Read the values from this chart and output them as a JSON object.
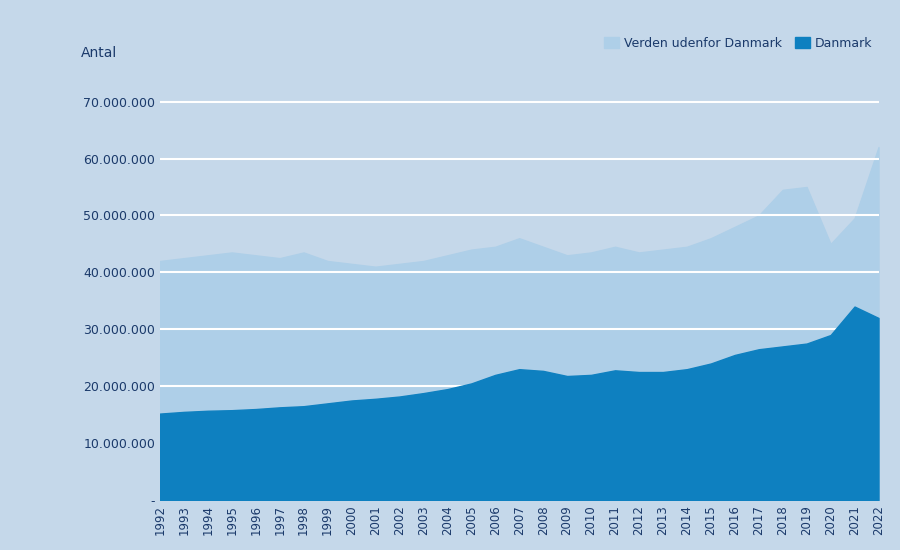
{
  "years": [
    1992,
    1993,
    1994,
    1995,
    1996,
    1997,
    1998,
    1999,
    2000,
    2001,
    2002,
    2003,
    2004,
    2005,
    2006,
    2007,
    2008,
    2009,
    2010,
    2011,
    2012,
    2013,
    2014,
    2015,
    2016,
    2017,
    2018,
    2019,
    2020,
    2021,
    2022
  ],
  "denmark": [
    15200000,
    15500000,
    15700000,
    15800000,
    16000000,
    16300000,
    16500000,
    17000000,
    17500000,
    17800000,
    18200000,
    18800000,
    19500000,
    20500000,
    22000000,
    23000000,
    22700000,
    21800000,
    22000000,
    22800000,
    22500000,
    22500000,
    23000000,
    24000000,
    25500000,
    26500000,
    27000000,
    27500000,
    29000000,
    34000000,
    32000000
  ],
  "total": [
    42000000,
    42500000,
    43000000,
    43500000,
    43000000,
    42500000,
    43500000,
    42000000,
    41500000,
    41000000,
    41500000,
    42000000,
    43000000,
    44000000,
    44500000,
    46000000,
    44500000,
    43000000,
    43500000,
    44500000,
    43500000,
    44000000,
    44500000,
    46000000,
    48000000,
    50000000,
    54500000,
    55000000,
    45000000,
    49500000,
    62000000
  ],
  "color_denmark": "#0E80C0",
  "color_verden": "#AECFE8",
  "background_color": "#C5D8EA",
  "plot_bg_color": "#C5D8EA",
  "ylabel": "Antal",
  "ylim": [
    0,
    75000000
  ],
  "yticks": [
    0,
    10000000,
    20000000,
    30000000,
    40000000,
    50000000,
    60000000,
    70000000
  ],
  "ytick_labels": [
    "-",
    "10.000.000",
    "20.000.000",
    "30.000.000",
    "40.000.000",
    "50.000.000",
    "60.000.000",
    "70.000.000"
  ],
  "legend_verden": "Verden udenfor Danmark",
  "legend_dk": "Danmark",
  "text_color": "#1B3A6B",
  "grid_color": "#FFFFFF",
  "grid_linewidth": 1.5
}
